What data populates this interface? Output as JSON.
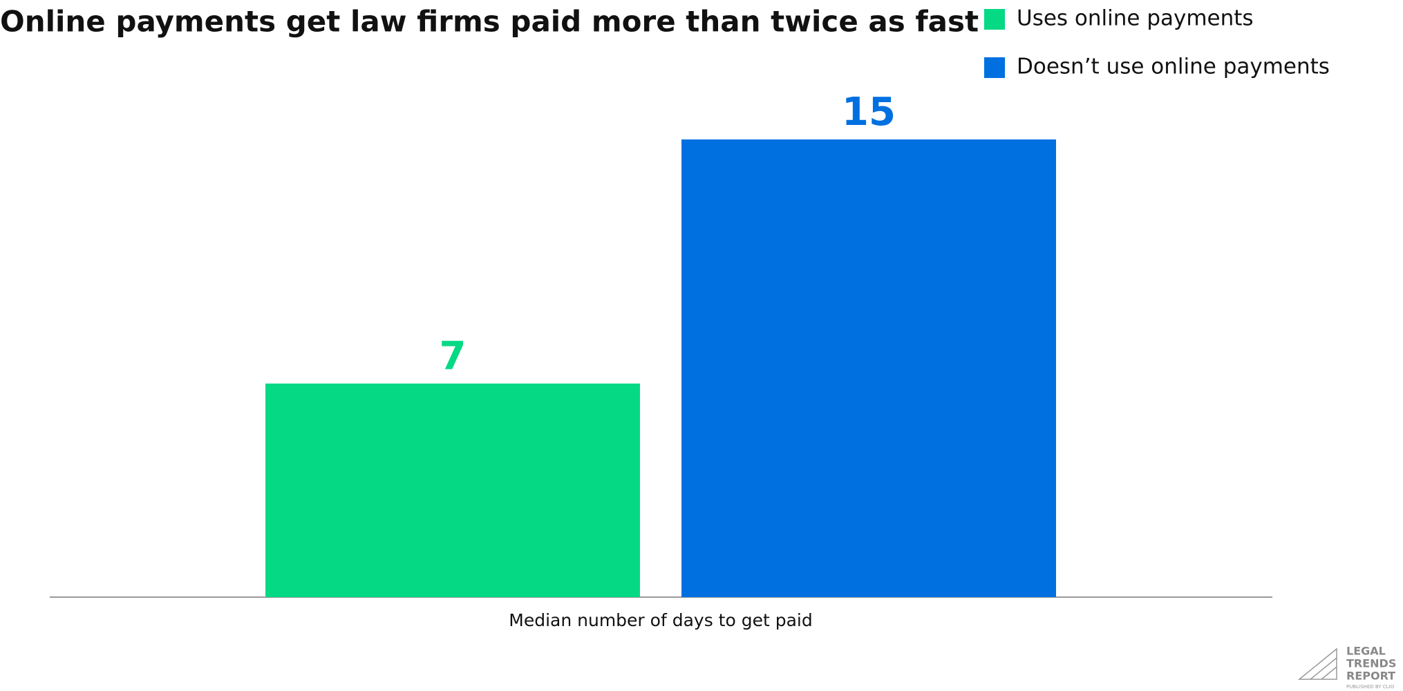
{
  "chart_data": {
    "type": "bar",
    "title": "Online payments get law firms paid more than twice as fast",
    "categories": [
      "Median number of days to get paid"
    ],
    "series": [
      {
        "name": "Uses online payments",
        "color": "#06d984",
        "values": [
          7
        ]
      },
      {
        "name": "Doesn’t use online payments",
        "color": "#0070e0",
        "values": [
          15
        ]
      }
    ],
    "legend": "top-right"
  },
  "logo": {
    "lines": [
      "LEGAL",
      "TRENDS",
      "REPORT"
    ],
    "byline": "PUBLISHED BY CLIO"
  }
}
